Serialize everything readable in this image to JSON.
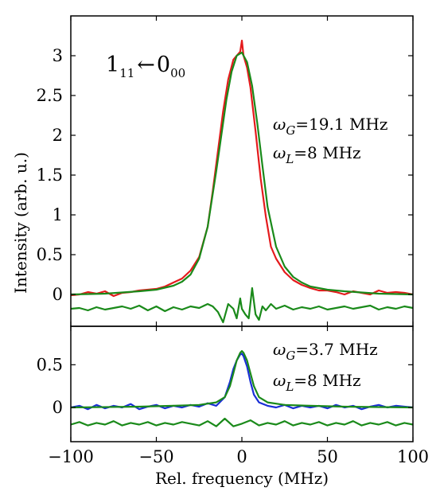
{
  "chart_data": [
    {
      "type": "line",
      "panel": "top",
      "xlim": [
        -100,
        100
      ],
      "ylim": [
        -0.4,
        3.5
      ],
      "xticks": [
        -100,
        -50,
        0,
        50,
        100
      ],
      "yticks": [
        0,
        0.5,
        1,
        1.5,
        2,
        2.5,
        3
      ],
      "ytick_labels": [
        "0",
        "0.5",
        "1",
        "1.5",
        "2",
        "2.5",
        "3"
      ],
      "ylabel": "Intensity (arb. u.)",
      "transition_label": {
        "main_a": "1",
        "sub_a": "11",
        "arrow": "←",
        "main_b": "0",
        "sub_b": "00"
      },
      "annotations": [
        {
          "omega": "ω",
          "sub": "G",
          "value": "=19.1 MHz"
        },
        {
          "omega": "ω",
          "sub": "L",
          "value": "=8 MHz"
        }
      ],
      "series": [
        {
          "color": "#e41a1c",
          "style": "measured",
          "x": [
            -100,
            -95,
            -90,
            -85,
            -80,
            -75,
            -70,
            -65,
            -60,
            -55,
            -50,
            -45,
            -40,
            -35,
            -30,
            -25,
            -20,
            -17,
            -14,
            -11,
            -8,
            -5,
            -3,
            -1,
            0,
            1,
            3,
            5,
            8,
            11,
            14,
            17,
            20,
            25,
            30,
            35,
            40,
            45,
            50,
            55,
            60,
            65,
            70,
            75,
            80,
            85,
            90,
            95,
            100
          ],
          "y": [
            -0.01,
            0.0,
            0.03,
            0.01,
            0.04,
            -0.02,
            0.02,
            0.03,
            0.05,
            0.06,
            0.07,
            0.1,
            0.15,
            0.2,
            0.3,
            0.47,
            0.85,
            1.3,
            1.8,
            2.3,
            2.7,
            2.95,
            3.0,
            3.05,
            3.19,
            3.0,
            2.85,
            2.6,
            2.05,
            1.45,
            0.98,
            0.6,
            0.45,
            0.28,
            0.18,
            0.12,
            0.08,
            0.05,
            0.05,
            0.03,
            0.0,
            0.04,
            0.02,
            0.0,
            0.05,
            0.02,
            0.03,
            0.02,
            0.0
          ]
        },
        {
          "color": "#1a8a1a",
          "style": "fit",
          "x": [
            -100,
            -80,
            -60,
            -50,
            -40,
            -35,
            -30,
            -25,
            -20,
            -15,
            -12,
            -9,
            -6,
            -3,
            0,
            3,
            6,
            9,
            12,
            15,
            20,
            25,
            30,
            35,
            40,
            50,
            60,
            80,
            100
          ],
          "y": [
            0.0,
            0.01,
            0.04,
            0.06,
            0.11,
            0.16,
            0.25,
            0.45,
            0.85,
            1.55,
            2.0,
            2.45,
            2.8,
            3.0,
            3.04,
            2.92,
            2.62,
            2.15,
            1.62,
            1.1,
            0.6,
            0.35,
            0.22,
            0.15,
            0.1,
            0.06,
            0.04,
            0.01,
            0.0
          ]
        },
        {
          "color": "#1a8a1a",
          "style": "residual",
          "x": [
            -100,
            -95,
            -90,
            -85,
            -80,
            -75,
            -70,
            -65,
            -60,
            -55,
            -50,
            -45,
            -40,
            -35,
            -30,
            -25,
            -20,
            -17,
            -14,
            -11,
            -8,
            -5,
            -3,
            -1,
            0,
            2,
            4,
            6,
            8,
            10,
            12,
            14,
            17,
            20,
            25,
            30,
            35,
            40,
            45,
            50,
            55,
            60,
            65,
            70,
            75,
            80,
            85,
            90,
            95,
            100
          ],
          "y": [
            -0.18,
            -0.17,
            -0.2,
            -0.16,
            -0.19,
            -0.17,
            -0.15,
            -0.18,
            -0.14,
            -0.2,
            -0.15,
            -0.21,
            -0.16,
            -0.19,
            -0.15,
            -0.17,
            -0.12,
            -0.15,
            -0.22,
            -0.35,
            -0.12,
            -0.18,
            -0.3,
            -0.05,
            -0.18,
            -0.25,
            -0.3,
            0.08,
            -0.25,
            -0.32,
            -0.15,
            -0.2,
            -0.12,
            -0.18,
            -0.14,
            -0.19,
            -0.16,
            -0.18,
            -0.15,
            -0.19,
            -0.17,
            -0.15,
            -0.18,
            -0.16,
            -0.14,
            -0.19,
            -0.16,
            -0.18,
            -0.15,
            -0.17
          ]
        }
      ]
    },
    {
      "type": "line",
      "panel": "bottom",
      "xlim": [
        -100,
        100
      ],
      "ylim": [
        -0.4,
        0.95
      ],
      "xticks": [
        -100,
        -50,
        0,
        50,
        100
      ],
      "xtick_labels": [
        "−100",
        "−50",
        "0",
        "50",
        "100"
      ],
      "yticks": [
        0,
        0.5
      ],
      "ytick_labels": [
        "0",
        "0.5"
      ],
      "xlabel": "Rel. frequency (MHz)",
      "annotations": [
        {
          "omega": "ω",
          "sub": "G",
          "value": "=3.7 MHz"
        },
        {
          "omega": "ω",
          "sub": "L",
          "value": "=8 MHz"
        }
      ],
      "series": [
        {
          "color": "#1a2fd6",
          "style": "measured",
          "x": [
            -100,
            -95,
            -90,
            -85,
            -80,
            -75,
            -70,
            -65,
            -60,
            -55,
            -50,
            -45,
            -40,
            -35,
            -30,
            -25,
            -20,
            -15,
            -10,
            -7,
            -5,
            -3,
            -1,
            0,
            1,
            3,
            5,
            7,
            10,
            15,
            20,
            25,
            30,
            35,
            40,
            45,
            50,
            55,
            60,
            65,
            70,
            75,
            80,
            85,
            90,
            95,
            100
          ],
          "y": [
            0.0,
            0.02,
            -0.02,
            0.03,
            -0.01,
            0.02,
            0.0,
            0.04,
            -0.02,
            0.01,
            0.03,
            -0.01,
            0.02,
            0.0,
            0.03,
            0.01,
            0.05,
            0.02,
            0.12,
            0.3,
            0.45,
            0.55,
            0.62,
            0.63,
            0.6,
            0.48,
            0.3,
            0.15,
            0.06,
            0.02,
            0.0,
            0.03,
            -0.01,
            0.02,
            0.0,
            0.02,
            -0.01,
            0.03,
            0.0,
            0.02,
            -0.02,
            0.01,
            0.03,
            0.0,
            0.02,
            0.01,
            0.0
          ]
        },
        {
          "color": "#1a8a1a",
          "style": "fit",
          "x": [
            -100,
            -60,
            -40,
            -25,
            -15,
            -10,
            -7,
            -5,
            -3,
            -1,
            0,
            1,
            3,
            5,
            7,
            10,
            15,
            25,
            40,
            60,
            100
          ],
          "y": [
            0.0,
            0.01,
            0.02,
            0.03,
            0.06,
            0.12,
            0.25,
            0.4,
            0.55,
            0.64,
            0.66,
            0.64,
            0.55,
            0.4,
            0.25,
            0.12,
            0.06,
            0.03,
            0.02,
            0.01,
            0.0
          ]
        },
        {
          "color": "#1a8a1a",
          "style": "residual",
          "x": [
            -100,
            -95,
            -90,
            -85,
            -80,
            -75,
            -70,
            -65,
            -60,
            -55,
            -50,
            -45,
            -40,
            -35,
            -30,
            -25,
            -20,
            -15,
            -10,
            -5,
            0,
            5,
            10,
            15,
            20,
            25,
            30,
            35,
            40,
            45,
            50,
            55,
            60,
            65,
            70,
            75,
            80,
            85,
            90,
            95,
            100
          ],
          "y": [
            -0.2,
            -0.17,
            -0.21,
            -0.18,
            -0.2,
            -0.16,
            -0.21,
            -0.18,
            -0.2,
            -0.17,
            -0.21,
            -0.18,
            -0.2,
            -0.17,
            -0.19,
            -0.21,
            -0.16,
            -0.22,
            -0.13,
            -0.22,
            -0.19,
            -0.15,
            -0.21,
            -0.18,
            -0.2,
            -0.16,
            -0.21,
            -0.18,
            -0.2,
            -0.17,
            -0.21,
            -0.18,
            -0.2,
            -0.16,
            -0.21,
            -0.18,
            -0.2,
            -0.17,
            -0.21,
            -0.18,
            -0.2
          ]
        }
      ]
    }
  ]
}
